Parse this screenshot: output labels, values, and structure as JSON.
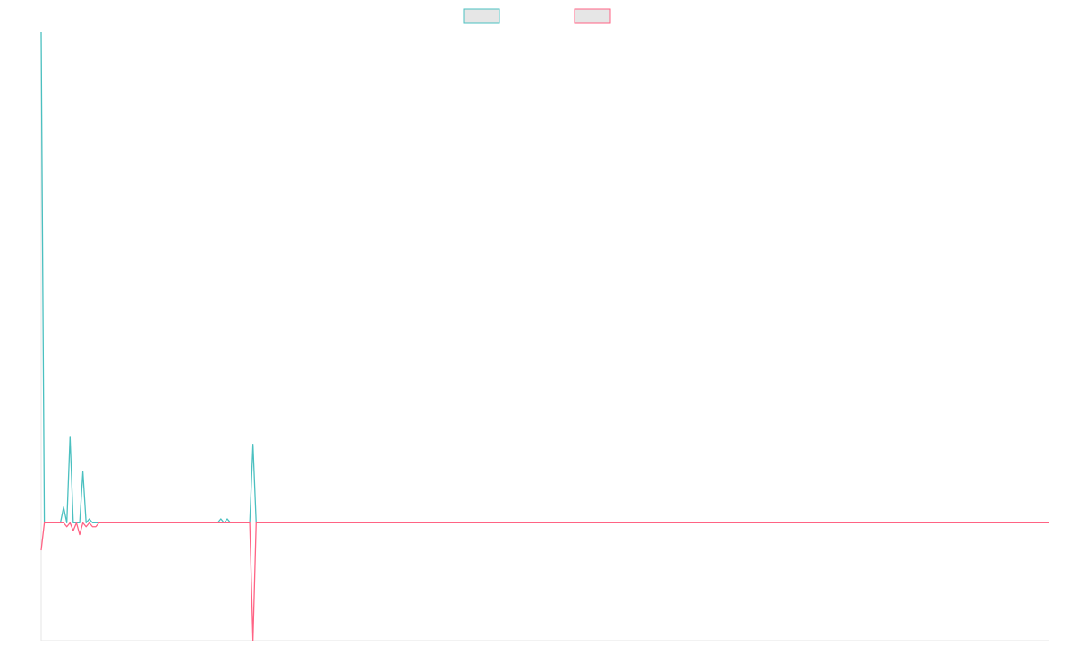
{
  "chart_data": {
    "type": "line",
    "title": "",
    "xlabel": "",
    "ylabel": "",
    "legend_position": "top-center",
    "grid": false,
    "ylim": [
      -30,
      125
    ],
    "series": [
      {
        "label": "",
        "color": "#4bc0c0",
        "fill": "#e6e6e6",
        "values": [
          125,
          0,
          0,
          0,
          0,
          0,
          0,
          4,
          0,
          22,
          0,
          0,
          0,
          13,
          0,
          1,
          0,
          0,
          0,
          0,
          0,
          0,
          0,
          0,
          0,
          0,
          0,
          0,
          0,
          0,
          0,
          0,
          0,
          0,
          0,
          0,
          0,
          0,
          0,
          0,
          0,
          0,
          0,
          0,
          0,
          0,
          0,
          0,
          0,
          0,
          0,
          0,
          0,
          0,
          0,
          0,
          1,
          0,
          1,
          0,
          0,
          0,
          0,
          0,
          0,
          0,
          20,
          0,
          0,
          0,
          0,
          0,
          0,
          0,
          0,
          0,
          0,
          0,
          0,
          0,
          0,
          0,
          0,
          0,
          0,
          0,
          0,
          0,
          0,
          0,
          0,
          0,
          0,
          0,
          0,
          0,
          0,
          0,
          0,
          0,
          0,
          0,
          0,
          0,
          0,
          0,
          0,
          0,
          0,
          0,
          0,
          0,
          0,
          0,
          0,
          0,
          0,
          0,
          0,
          0,
          0,
          0,
          0,
          0,
          0,
          0,
          0,
          0,
          0,
          0,
          0,
          0,
          0,
          0,
          0,
          0,
          0,
          0,
          0,
          0,
          0,
          0,
          0,
          0,
          0,
          0,
          0,
          0,
          0,
          0,
          0,
          0,
          0,
          0,
          0,
          0,
          0,
          0,
          0,
          0,
          0,
          0,
          0,
          0,
          0,
          0,
          0,
          0,
          0,
          0,
          0,
          0,
          0,
          0,
          0,
          0,
          0,
          0,
          0,
          0,
          0,
          0,
          0,
          0,
          0,
          0,
          0,
          0,
          0,
          0,
          0,
          0,
          0,
          0,
          0,
          0,
          0,
          0,
          0,
          0,
          0,
          0,
          0,
          0,
          0,
          0,
          0,
          0,
          0,
          0,
          0,
          0,
          0,
          0,
          0,
          0,
          0,
          0,
          0,
          0,
          0,
          0,
          0,
          0,
          0,
          0,
          0,
          0,
          0,
          0,
          0,
          0,
          0,
          0,
          0,
          0,
          0,
          0,
          0,
          0,
          0,
          0,
          0,
          0,
          0,
          0,
          0,
          0,
          0,
          0,
          0,
          0,
          0,
          0,
          0,
          0,
          0,
          0,
          0,
          0,
          0,
          0,
          0,
          0,
          0,
          0,
          0,
          0,
          0,
          0,
          0,
          0,
          0,
          0,
          0,
          0,
          0,
          0,
          0,
          0,
          0,
          0,
          0,
          0,
          0,
          0,
          0,
          0,
          0,
          0,
          0,
          0,
          0,
          0,
          0,
          0,
          0,
          0,
          0,
          0,
          0,
          0,
          0,
          0,
          0,
          0,
          0,
          0,
          0,
          0
        ]
      },
      {
        "label": "",
        "color": "#ff6384",
        "fill": "#e6e6e6",
        "values": [
          -7,
          0,
          0,
          0,
          0,
          0,
          0,
          0,
          -1,
          0,
          -2,
          0,
          -3,
          0,
          -1,
          0,
          -1,
          -1,
          0,
          0,
          0,
          0,
          0,
          0,
          0,
          0,
          0,
          0,
          0,
          0,
          0,
          0,
          0,
          0,
          0,
          0,
          0,
          0,
          0,
          0,
          0,
          0,
          0,
          0,
          0,
          0,
          0,
          0,
          0,
          0,
          0,
          0,
          0,
          0,
          0,
          0,
          0,
          0,
          0,
          0,
          0,
          0,
          0,
          0,
          0,
          0,
          -30,
          0,
          0,
          0,
          0,
          0,
          0,
          0,
          0,
          0,
          0,
          0,
          0,
          0,
          0,
          0,
          0,
          0,
          0,
          0,
          0,
          0,
          0,
          0,
          0,
          0,
          0,
          0,
          0,
          0,
          0,
          0,
          0,
          0,
          0,
          0,
          0,
          0,
          0,
          0,
          0,
          0,
          0,
          0,
          0,
          0,
          0,
          0,
          0,
          0,
          0,
          0,
          0,
          0,
          0,
          0,
          0,
          0,
          0,
          0,
          0,
          0,
          0,
          0,
          0,
          0,
          0,
          0,
          0,
          0,
          0,
          0,
          0,
          0,
          0,
          0,
          0,
          0,
          0,
          0,
          0,
          0,
          0,
          0,
          0,
          0,
          0,
          0,
          0,
          0,
          0,
          0,
          0,
          0,
          0,
          0,
          0,
          0,
          0,
          0,
          0,
          0,
          0,
          0,
          0,
          0,
          0,
          0,
          0,
          0,
          0,
          0,
          0,
          0,
          0,
          0,
          0,
          0,
          0,
          0,
          0,
          0,
          0,
          0,
          0,
          0,
          0,
          0,
          0,
          0,
          0,
          0,
          0,
          0,
          0,
          0,
          0,
          0,
          0,
          0,
          0,
          0,
          0,
          0,
          0,
          0,
          0,
          0,
          0,
          0,
          0,
          0,
          0,
          0,
          0,
          0,
          0,
          0,
          0,
          0,
          0,
          0,
          0,
          0,
          0,
          0,
          0,
          0,
          0,
          0,
          0,
          0,
          0,
          0,
          0,
          0,
          0,
          0,
          0,
          0,
          0,
          0,
          0,
          0,
          0,
          0,
          0,
          0,
          0,
          0,
          0,
          0,
          0,
          0,
          0,
          0,
          0,
          0,
          0,
          0,
          0,
          0,
          0,
          0,
          0,
          0,
          0,
          0,
          0,
          0,
          0,
          0,
          0,
          0,
          0,
          0,
          0,
          0,
          0,
          0,
          0,
          0,
          0,
          0,
          0,
          0,
          0,
          0,
          0,
          0,
          0,
          0,
          0,
          0,
          0,
          0,
          0,
          0,
          0,
          0,
          0,
          0,
          0,
          0,
          0,
          0,
          0,
          0,
          0
        ]
      }
    ]
  }
}
